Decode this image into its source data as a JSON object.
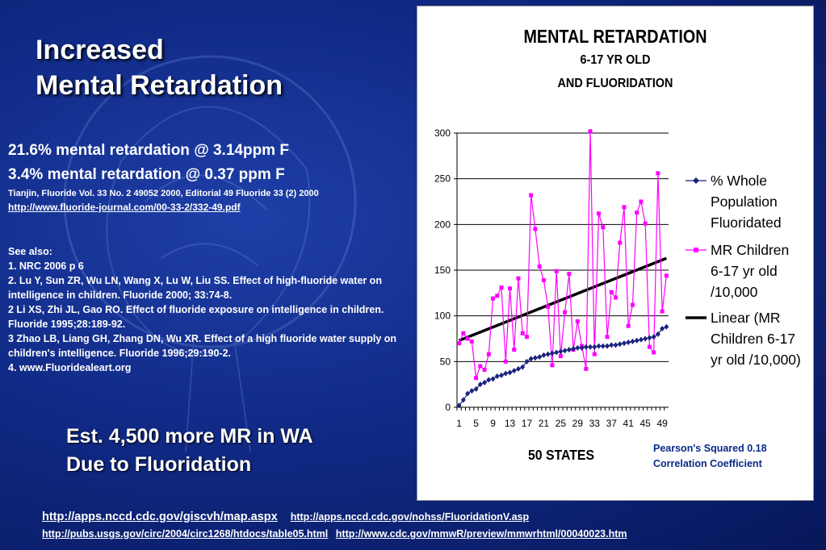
{
  "slide": {
    "title_line1": "Increased",
    "title_line2": "Mental Retardation",
    "stat1": "21.6% mental retardation @ 3.14ppm F",
    "stat2": "3.4% mental retardation @ 0.37 ppm F",
    "citation": "Tianjin, Fluoride Vol. 33 No. 2 49052 2000, Editorial 49 Fluoride 33 (2) 2000",
    "citation_link": "http://www.fluoride-journal.com/00-33-2/332-49.pdf",
    "see_also": "See also:",
    "refs": [
      "1. NRC 2006 p 6",
      "2.  Lu Y, Sun ZR, Wu LN, Wang X, Lu W, Liu SS. Effect of high-fluoride water on intelligence in children. Fluoride 2000; 33:74-8.",
      "2 Li XS, Zhi JL, Gao RO. Effect of fluoride exposure on intelligence in children. Fluoride 1995;28:189-92.",
      "3 Zhao LB, Liang GH, Zhang DN, Wu XR. Effect of a high fluoride water supply on children's intelligence. Fluoride 1996;29:190-2.",
      "4.  www.Fluoridealeart.org"
    ],
    "est_line1": "Est. 4,500 more MR in WA",
    "est_line2": "Due to Fluoridation",
    "pearson_line1": "Pearson's Squared 0.18",
    "pearson_line2": "Correlation Coefficient",
    "footer_links": [
      "http://apps.nccd.cdc.gov/giscvh/map.aspx",
      "http://apps.nccd.cdc.gov/nohss/FluoridationV.asp",
      "http://pubs.usgs.gov/circ/2004/circ1268/htdocs/table05.html",
      "http://www.cdc.gov/mmwR/preview/mmwrhtml/00040023.htm"
    ]
  },
  "chart_data": {
    "type": "line",
    "title": "MENTAL RETARDATION",
    "subtitle_line1": "6-17 YR OLD",
    "subtitle_line2": "AND FLUORIDATION",
    "xlabel": "50 STATES",
    "ylabel": "",
    "ylim": [
      0,
      300
    ],
    "yticks": [
      0,
      50,
      100,
      150,
      200,
      250,
      300
    ],
    "x": [
      1,
      2,
      3,
      4,
      5,
      6,
      7,
      8,
      9,
      10,
      11,
      12,
      13,
      14,
      15,
      16,
      17,
      18,
      19,
      20,
      21,
      22,
      23,
      24,
      25,
      26,
      27,
      28,
      29,
      30,
      31,
      32,
      33,
      34,
      35,
      36,
      37,
      38,
      39,
      40,
      41,
      42,
      43,
      44,
      45,
      46,
      47,
      48,
      49,
      50
    ],
    "xticks": [
      1,
      5,
      9,
      13,
      17,
      21,
      25,
      29,
      33,
      37,
      41,
      45,
      49
    ],
    "grid": true,
    "legend_position": "right",
    "series": [
      {
        "name": "% Whole Population Fluoridated",
        "color": "#1a237e",
        "marker": "diamond",
        "values": [
          2,
          8,
          15,
          18,
          20,
          25,
          27,
          30,
          31,
          34,
          35,
          37,
          38,
          40,
          42,
          44,
          50,
          53,
          54,
          55,
          57,
          58,
          59,
          60,
          61,
          62,
          63,
          64,
          65,
          65,
          66,
          66,
          66,
          67,
          67,
          67,
          68,
          68,
          69,
          70,
          71,
          72,
          73,
          74,
          75,
          76,
          77,
          80,
          86,
          88
        ]
      },
      {
        "name": "MR Children 6-17 yr old /10,000",
        "color": "#ff00ff",
        "marker": "square",
        "values": [
          70,
          81,
          75,
          72,
          32,
          45,
          41,
          58,
          119,
          122,
          131,
          50,
          130,
          63,
          141,
          81,
          77,
          232,
          195,
          154,
          139,
          110,
          46,
          149,
          56,
          104,
          146,
          63,
          94,
          67,
          42,
          302,
          58,
          212,
          197,
          77,
          126,
          120,
          180,
          219,
          89,
          112,
          213,
          225,
          201,
          66,
          60,
          256,
          105,
          144
        ]
      },
      {
        "name": "Linear (MR Children 6-17 yr old /10,000)",
        "color": "#000000",
        "marker": "none",
        "trend_start": 73,
        "trend_end": 163
      }
    ]
  }
}
